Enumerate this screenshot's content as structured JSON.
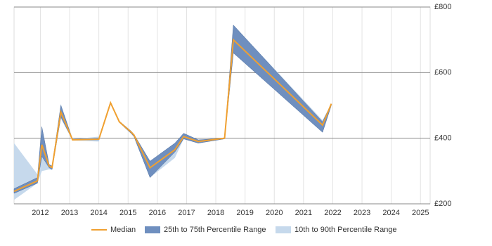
{
  "chart_data": {
    "type": "range-line",
    "x": [
      2011.1,
      2011.9,
      2012.05,
      2012.3,
      2012.4,
      2012.7,
      2013.1,
      2014.0,
      2014.4,
      2014.7,
      2015.1,
      2015.2,
      2015.75,
      2016.6,
      2016.9,
      2017.4,
      2018.3,
      2018.6,
      2021.65,
      2021.95
    ],
    "xlim": [
      2011.1,
      2025.33
    ],
    "xticks": [
      2012,
      2013,
      2014,
      2015,
      2016,
      2017,
      2018,
      2019,
      2020,
      2021,
      2022,
      2023,
      2024,
      2025
    ],
    "ylim": [
      200,
      800
    ],
    "yticks": [
      {
        "value": 200,
        "label": "£200"
      },
      {
        "value": 400,
        "label": "£400"
      },
      {
        "value": 600,
        "label": "£600"
      },
      {
        "value": 800,
        "label": "£800"
      }
    ],
    "grid": true,
    "legend": "bottom",
    "series": [
      {
        "name": "10th to 90th Percentile Range",
        "color": "#c6d9ec",
        "low": [
          212,
          263,
          300,
          305,
          303,
          460,
          393,
          390,
          508,
          448,
          415,
          405,
          280,
          340,
          398,
          385,
          398,
          660,
          418,
          500
        ],
        "high": [
          385,
          290,
          435,
          320,
          315,
          505,
          397,
          405,
          508,
          452,
          422,
          412,
          330,
          385,
          415,
          395,
          400,
          745,
          455,
          505
        ]
      },
      {
        "name": "25th to 75th Percentile Range",
        "color": "#6f8fbf",
        "low": [
          232,
          263,
          345,
          310,
          305,
          465,
          395,
          395,
          508,
          448,
          415,
          405,
          280,
          358,
          398,
          385,
          398,
          660,
          418,
          500
        ],
        "high": [
          246,
          280,
          435,
          320,
          315,
          500,
          397,
          400,
          508,
          452,
          422,
          412,
          330,
          385,
          415,
          395,
          400,
          745,
          450,
          505
        ]
      },
      {
        "name": "Median",
        "color": "#f0a030",
        "values": [
          238,
          270,
          380,
          315,
          311,
          480,
          395,
          397,
          508,
          450,
          419,
          410,
          310,
          365,
          405,
          390,
          400,
          700,
          440,
          505
        ]
      }
    ]
  }
}
